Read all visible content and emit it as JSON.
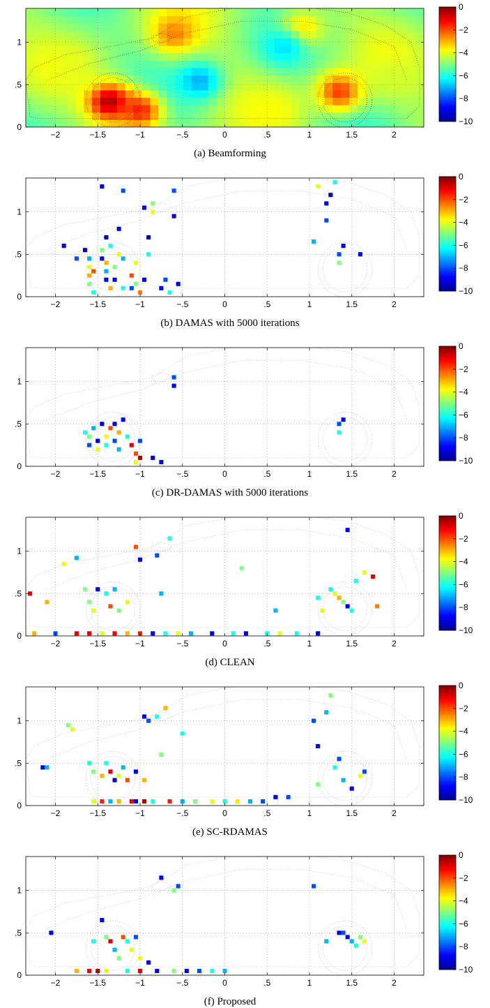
{
  "figure": {
    "panels": [
      {
        "caption": "(a) Beamforming",
        "style": "map"
      },
      {
        "caption": "(b) DAMAS with 5000 iterations",
        "style": "sparse"
      },
      {
        "caption": "(c) DR-DAMAS with 5000 iterations",
        "style": "sparse"
      },
      {
        "caption": "(d) CLEAN",
        "style": "sparse"
      },
      {
        "caption": "(e) SC-RDAMAS",
        "style": "sparse"
      },
      {
        "caption": "(f) Proposed",
        "style": "sparse"
      }
    ]
  },
  "colormap": {
    "name": "jet",
    "colors": [
      "#00008f",
      "#0000ff",
      "#0080ff",
      "#00ffff",
      "#80ff80",
      "#ffff00",
      "#ff8000",
      "#ff0000",
      "#800000"
    ]
  },
  "chart_data": [
    {
      "type": "heatmap",
      "title": "",
      "xlabel": "",
      "ylabel": "",
      "xlim": [
        -2.35,
        2.35
      ],
      "ylim": [
        0,
        1.4
      ],
      "xticks": [
        -2,
        -1.5,
        -1,
        -0.5,
        0,
        0.5,
        1,
        1.5,
        2
      ],
      "yticks": [
        0,
        0.5,
        1
      ],
      "colorbar": {
        "range": [
          -10,
          0
        ],
        "ticks": [
          0,
          -2,
          -4,
          -6,
          -8,
          -10
        ]
      },
      "background": "smooth",
      "hotspots": [
        {
          "x": -1.35,
          "y": 0.3,
          "value": -0.3
        },
        {
          "x": -1.0,
          "y": 0.2,
          "value": -1.5
        },
        {
          "x": -0.6,
          "y": 1.1,
          "value": -2.5
        },
        {
          "x": 1.35,
          "y": 0.42,
          "value": -1.8
        },
        {
          "x": 0.9,
          "y": 1.15,
          "value": -3.0
        },
        {
          "x": -1.8,
          "y": 0.75,
          "value": -4.0
        },
        {
          "x": 0.6,
          "y": 0.2,
          "value": -3.8
        },
        {
          "x": 2.0,
          "y": 0.6,
          "value": -4.2
        },
        {
          "x": -0.3,
          "y": 0.55,
          "value": -7.0
        },
        {
          "x": 0.7,
          "y": 0.95,
          "value": -6.5
        }
      ]
    },
    {
      "type": "heatmap",
      "title": "",
      "xlabel": "",
      "ylabel": "",
      "xlim": [
        -2.35,
        2.35
      ],
      "ylim": [
        0,
        1.4
      ],
      "xticks": [
        -2,
        -1.5,
        -1,
        -0.5,
        0,
        0.5,
        1,
        1.5,
        2
      ],
      "yticks": [
        0,
        0.5,
        1
      ],
      "colorbar": {
        "range": [
          -10,
          0
        ],
        "ticks": [
          0,
          -2,
          -4,
          -6,
          -8,
          -10
        ]
      },
      "cells": [
        [
          -1.65,
          0.55,
          -9.5
        ],
        [
          -1.6,
          0.45,
          -7
        ],
        [
          -1.6,
          0.35,
          -4
        ],
        [
          -1.6,
          0.25,
          -3
        ],
        [
          -1.6,
          0.15,
          -5
        ],
        [
          -1.55,
          0.3,
          -2
        ],
        [
          -1.55,
          0.05,
          -6
        ],
        [
          -1.45,
          0.55,
          -5
        ],
        [
          -1.45,
          0.45,
          -9
        ],
        [
          -1.4,
          0.4,
          -3
        ],
        [
          -1.4,
          0.3,
          -7
        ],
        [
          -1.4,
          0.2,
          -9
        ],
        [
          -1.4,
          0.7,
          -9.5
        ],
        [
          -1.35,
          0.6,
          -6
        ],
        [
          -1.35,
          0.1,
          -3
        ],
        [
          -1.3,
          0.2,
          -9
        ],
        [
          -1.3,
          0.35,
          -5
        ],
        [
          -1.25,
          0.5,
          -4
        ],
        [
          -1.25,
          0.8,
          -9
        ],
        [
          -1.2,
          0.1,
          -6
        ],
        [
          -1.2,
          0.45,
          -7
        ],
        [
          -1.1,
          0.25,
          -2
        ],
        [
          -1.1,
          0.1,
          -8
        ],
        [
          -1.05,
          0.4,
          -4
        ],
        [
          -1.05,
          0.15,
          -5
        ],
        [
          -1.0,
          0.05,
          -2.5
        ],
        [
          -0.95,
          0.2,
          -9
        ],
        [
          -0.9,
          0.7,
          -9.5
        ],
        [
          -0.9,
          0.5,
          -6
        ],
        [
          -0.85,
          1.1,
          -5
        ],
        [
          -0.85,
          1.0,
          -4
        ],
        [
          -0.75,
          0.1,
          -9
        ],
        [
          -0.7,
          0.2,
          -8
        ],
        [
          -0.65,
          0.05,
          -6
        ],
        [
          -0.6,
          1.25,
          -8
        ],
        [
          -0.6,
          0.95,
          -9
        ],
        [
          -0.55,
          0.15,
          -9
        ],
        [
          -1.9,
          0.6,
          -9
        ],
        [
          -1.75,
          0.45,
          -8
        ],
        [
          -1.45,
          1.3,
          -9
        ],
        [
          -1.2,
          1.25,
          -8
        ],
        [
          -0.95,
          1.05,
          -9
        ],
        [
          1.05,
          0.65,
          -7
        ],
        [
          1.1,
          1.3,
          -4
        ],
        [
          1.2,
          1.1,
          -9
        ],
        [
          1.25,
          1.2,
          -9.5
        ],
        [
          1.3,
          1.35,
          -6
        ],
        [
          1.35,
          0.5,
          -8
        ],
        [
          1.35,
          0.4,
          -5
        ],
        [
          1.4,
          0.6,
          -9
        ],
        [
          1.6,
          0.5,
          -9
        ],
        [
          1.2,
          0.9,
          -8
        ]
      ]
    },
    {
      "type": "heatmap",
      "title": "",
      "xlabel": "",
      "ylabel": "",
      "xlim": [
        -2.35,
        2.35
      ],
      "ylim": [
        0,
        1.4
      ],
      "xticks": [
        -2,
        -1.5,
        -1,
        -0.5,
        0,
        0.5,
        1,
        1.5,
        2
      ],
      "yticks": [
        0,
        0.5,
        1
      ],
      "colorbar": {
        "range": [
          -10,
          0
        ],
        "ticks": [
          0,
          -2,
          -4,
          -6,
          -8,
          -10
        ]
      },
      "cells": [
        [
          -1.65,
          0.4,
          -6
        ],
        [
          -1.6,
          0.35,
          -5
        ],
        [
          -1.6,
          0.25,
          -8
        ],
        [
          -1.55,
          0.45,
          -7
        ],
        [
          -1.5,
          0.3,
          -9
        ],
        [
          -1.5,
          0.2,
          -4
        ],
        [
          -1.45,
          0.5,
          -9
        ],
        [
          -1.4,
          0.35,
          -4
        ],
        [
          -1.4,
          0.25,
          -6
        ],
        [
          -1.35,
          0.45,
          -2
        ],
        [
          -1.3,
          0.5,
          -9
        ],
        [
          -1.3,
          0.3,
          -8
        ],
        [
          -1.25,
          0.4,
          -3
        ],
        [
          -1.25,
          0.2,
          -7
        ],
        [
          -1.2,
          0.55,
          -9
        ],
        [
          -1.15,
          0.35,
          -6
        ],
        [
          -1.1,
          0.25,
          -1
        ],
        [
          -1.05,
          0.15,
          -2
        ],
        [
          -1.05,
          0.05,
          -4
        ],
        [
          -1.0,
          0.1,
          -0.5
        ],
        [
          -1.0,
          0.3,
          -8
        ],
        [
          -0.85,
          0.1,
          -9
        ],
        [
          -0.75,
          0.05,
          -9
        ],
        [
          -0.6,
          1.05,
          -8
        ],
        [
          -0.6,
          0.95,
          -9
        ],
        [
          1.35,
          0.5,
          -8
        ],
        [
          1.35,
          0.4,
          -6
        ],
        [
          1.4,
          0.55,
          -9
        ]
      ]
    },
    {
      "type": "heatmap",
      "title": "",
      "xlabel": "",
      "ylabel": "",
      "xlim": [
        -2.35,
        2.35
      ],
      "ylim": [
        0,
        1.4
      ],
      "xticks": [
        -2,
        -1.5,
        -1,
        -0.5,
        0,
        0.5,
        1,
        1.5,
        2
      ],
      "yticks": [
        0,
        0.5,
        1
      ],
      "colorbar": {
        "range": [
          -10,
          0
        ],
        "ticks": [
          0,
          -2,
          -4,
          -6,
          -8,
          -10
        ]
      },
      "cells": [
        [
          -2.3,
          0.5,
          -1
        ],
        [
          -2.1,
          0.4,
          -3
        ],
        [
          -1.9,
          0.85,
          -4
        ],
        [
          -1.75,
          0.92,
          -7
        ],
        [
          -1.65,
          0.55,
          -5
        ],
        [
          -1.6,
          0.4,
          -5
        ],
        [
          -1.55,
          0.3,
          -4
        ],
        [
          -1.5,
          0.55,
          -9
        ],
        [
          -1.4,
          0.5,
          -6
        ],
        [
          -1.35,
          0.35,
          -2
        ],
        [
          -1.3,
          0.55,
          -7
        ],
        [
          -1.25,
          0.3,
          -5
        ],
        [
          -1.15,
          0.4,
          -4
        ],
        [
          -1.05,
          1.05,
          -2
        ],
        [
          -1.0,
          0.9,
          -9
        ],
        [
          -0.8,
          0.95,
          -8
        ],
        [
          -0.65,
          1.15,
          -6
        ],
        [
          -0.75,
          0.5,
          -7
        ],
        [
          0.2,
          0.8,
          -5
        ],
        [
          0.6,
          0.3,
          -7
        ],
        [
          1.1,
          0.45,
          -6
        ],
        [
          1.15,
          0.3,
          -4
        ],
        [
          1.25,
          0.55,
          -6
        ],
        [
          1.3,
          0.5,
          -4
        ],
        [
          1.35,
          0.45,
          -3
        ],
        [
          1.4,
          0.4,
          -5
        ],
        [
          1.45,
          0.35,
          -9
        ],
        [
          1.5,
          0.3,
          -6
        ],
        [
          1.55,
          0.65,
          -6
        ],
        [
          1.65,
          0.75,
          -4
        ],
        [
          1.75,
          0.7,
          -1
        ],
        [
          1.8,
          0.35,
          -2.5
        ],
        [
          1.45,
          1.25,
          -9
        ],
        [
          -2.25,
          0.03,
          -3
        ],
        [
          -2.0,
          0.03,
          -8
        ],
        [
          -1.75,
          0.03,
          -1
        ],
        [
          -1.6,
          0.03,
          -1
        ],
        [
          -1.45,
          0.03,
          -4
        ],
        [
          -1.3,
          0.03,
          -1
        ],
        [
          -1.15,
          0.03,
          -3
        ],
        [
          -1.0,
          0.03,
          -1.5
        ],
        [
          -0.85,
          0.03,
          -9
        ],
        [
          -0.7,
          0.03,
          -6
        ],
        [
          -0.55,
          0.03,
          -4
        ],
        [
          -0.4,
          0.03,
          -7
        ],
        [
          -0.15,
          0.03,
          -9
        ],
        [
          0.1,
          0.03,
          -6
        ],
        [
          0.25,
          0.03,
          -9
        ],
        [
          0.5,
          0.03,
          -6
        ],
        [
          0.65,
          0.03,
          -4
        ],
        [
          0.85,
          0.03,
          -6
        ],
        [
          1.1,
          0.03,
          -9
        ]
      ]
    },
    {
      "type": "heatmap",
      "title": "",
      "xlabel": "",
      "ylabel": "",
      "xlim": [
        -2.35,
        2.35
      ],
      "ylim": [
        0,
        1.4
      ],
      "xticks": [
        -2,
        -1.5,
        -1,
        -0.5,
        0,
        0.5,
        1,
        1.5,
        2
      ],
      "yticks": [
        0,
        0.5,
        1
      ],
      "colorbar": {
        "range": [
          -10,
          0
        ],
        "ticks": [
          0,
          -2,
          -4,
          -6,
          -8,
          -10
        ]
      },
      "cells": [
        [
          -2.15,
          0.45,
          -9
        ],
        [
          -2.1,
          0.45,
          -7
        ],
        [
          -1.85,
          0.95,
          -5
        ],
        [
          -1.8,
          0.9,
          -4
        ],
        [
          -1.6,
          0.5,
          -6
        ],
        [
          -1.55,
          0.4,
          -5
        ],
        [
          -1.45,
          0.35,
          -3
        ],
        [
          -1.4,
          0.5,
          -6
        ],
        [
          -1.35,
          0.4,
          -1
        ],
        [
          -1.3,
          0.3,
          -9
        ],
        [
          -1.25,
          0.35,
          -4
        ],
        [
          -1.2,
          0.45,
          -7
        ],
        [
          -1.15,
          0.3,
          -2
        ],
        [
          -1.05,
          0.4,
          -9
        ],
        [
          -0.95,
          0.3,
          -3
        ],
        [
          -0.95,
          1.05,
          -9
        ],
        [
          -0.9,
          1.0,
          -8
        ],
        [
          -0.8,
          1.05,
          -6
        ],
        [
          -0.7,
          1.15,
          -3
        ],
        [
          -0.5,
          0.85,
          -6
        ],
        [
          -0.75,
          0.6,
          -5
        ],
        [
          1.05,
          1.0,
          -8
        ],
        [
          1.1,
          0.7,
          -9
        ],
        [
          1.1,
          0.25,
          -5
        ],
        [
          1.3,
          0.45,
          -6
        ],
        [
          1.35,
          0.55,
          -8
        ],
        [
          1.4,
          0.3,
          -7
        ],
        [
          1.5,
          0.2,
          -9
        ],
        [
          1.6,
          0.35,
          -4
        ],
        [
          1.65,
          0.4,
          -8
        ],
        [
          1.2,
          1.1,
          -7
        ],
        [
          1.25,
          1.3,
          -5
        ],
        [
          -1.55,
          0.05,
          -4
        ],
        [
          -1.45,
          0.05,
          -1.5
        ],
        [
          -1.35,
          0.05,
          -7
        ],
        [
          -1.25,
          0.05,
          -3
        ],
        [
          -1.1,
          0.05,
          -1
        ],
        [
          -1.05,
          0.05,
          -9
        ],
        [
          -0.95,
          0.05,
          -0.5
        ],
        [
          -0.85,
          0.05,
          -6
        ],
        [
          -0.65,
          0.05,
          -1.5
        ],
        [
          -0.5,
          0.05,
          -7
        ],
        [
          -0.35,
          0.05,
          -5
        ],
        [
          -0.15,
          0.05,
          -4
        ],
        [
          0.0,
          0.05,
          -6
        ],
        [
          0.15,
          0.05,
          -3.5
        ],
        [
          0.3,
          0.05,
          -7
        ],
        [
          0.45,
          0.05,
          -8
        ],
        [
          0.6,
          0.1,
          -9
        ],
        [
          0.75,
          0.1,
          -8
        ]
      ]
    },
    {
      "type": "heatmap",
      "title": "",
      "xlabel": "",
      "ylabel": "",
      "xlim": [
        -2.35,
        2.35
      ],
      "ylim": [
        0,
        1.4
      ],
      "xticks": [
        -2,
        -1.5,
        -1,
        -0.5,
        0,
        0.5,
        1,
        1.5,
        2
      ],
      "yticks": [
        0,
        0.5,
        1
      ],
      "colorbar": {
        "range": [
          -10,
          0
        ],
        "ticks": [
          0,
          -2,
          -4,
          -6,
          -8,
          -10
        ]
      },
      "cells": [
        [
          -2.05,
          0.5,
          -9
        ],
        [
          -1.55,
          0.4,
          -6
        ],
        [
          -1.45,
          0.65,
          -9
        ],
        [
          -1.4,
          0.45,
          -5
        ],
        [
          -1.35,
          0.4,
          -1
        ],
        [
          -1.3,
          0.3,
          -7
        ],
        [
          -1.25,
          0.2,
          -5
        ],
        [
          -1.2,
          0.45,
          -2
        ],
        [
          -1.15,
          0.4,
          -6
        ],
        [
          -1.1,
          0.3,
          -4
        ],
        [
          -1.05,
          0.45,
          -8
        ],
        [
          -1.0,
          0.2,
          -4
        ],
        [
          -0.9,
          0.15,
          -9
        ],
        [
          -0.75,
          1.15,
          -9
        ],
        [
          -0.6,
          1.0,
          -5
        ],
        [
          -0.55,
          1.05,
          -8
        ],
        [
          1.05,
          1.05,
          -8
        ],
        [
          1.35,
          0.5,
          -9
        ],
        [
          1.4,
          0.5,
          -8
        ],
        [
          1.45,
          0.45,
          -9
        ],
        [
          1.5,
          0.4,
          -7
        ],
        [
          1.55,
          0.35,
          -6
        ],
        [
          1.6,
          0.45,
          -5
        ],
        [
          1.65,
          0.4,
          -4
        ],
        [
          1.2,
          0.4,
          -7
        ],
        [
          -1.75,
          0.05,
          -3
        ],
        [
          -1.6,
          0.05,
          -1
        ],
        [
          -1.5,
          0.05,
          -0.5
        ],
        [
          -1.4,
          0.05,
          -4
        ],
        [
          -1.15,
          0.05,
          -6
        ],
        [
          -1.0,
          0.05,
          -1
        ],
        [
          -0.8,
          0.05,
          -9
        ],
        [
          -0.6,
          0.05,
          -5
        ],
        [
          -0.45,
          0.05,
          -9
        ],
        [
          -0.3,
          0.05,
          -8
        ],
        [
          -0.15,
          0.05,
          -6
        ],
        [
          0.0,
          0.05,
          -7
        ]
      ]
    }
  ]
}
